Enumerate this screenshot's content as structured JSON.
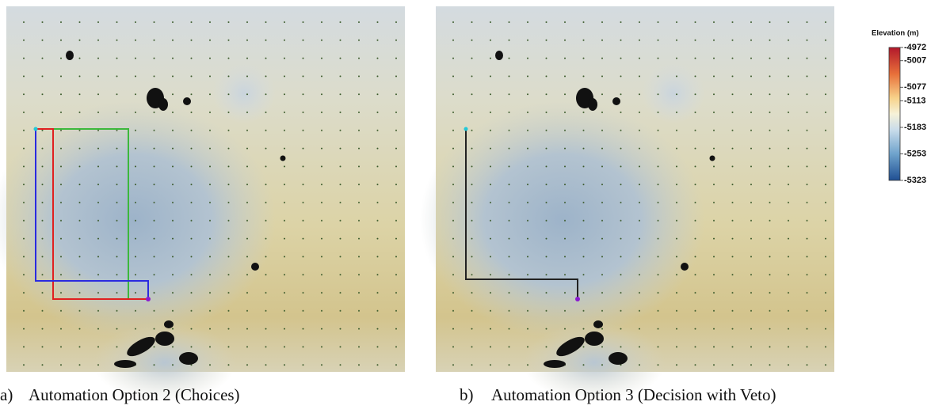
{
  "panels": [
    {
      "label": "a)",
      "caption": "Automation Option 2 (Choices)"
    },
    {
      "label": "b)",
      "caption": "Automation Option 3 (Decision with Veto)"
    }
  ],
  "colorbar": {
    "title": "Elevation (m)",
    "lim": [
      -4972,
      -5323
    ],
    "ticks": [
      -4972,
      -5007,
      -5077,
      -5113,
      -5183,
      -5253,
      -5323
    ]
  }
}
